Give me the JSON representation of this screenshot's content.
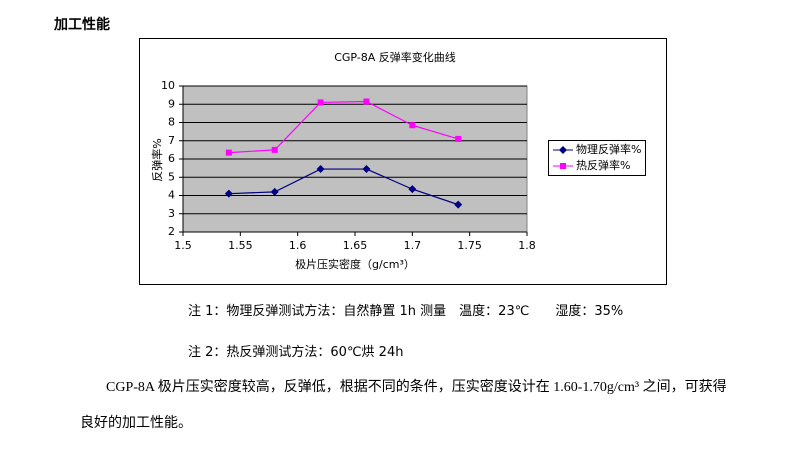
{
  "heading": "加工性能",
  "chart_data": {
    "type": "line",
    "title": "CGP-8A 反弹率变化曲线",
    "x_label": "极片压实密度（g/cm³）",
    "y_label": "反弹率%",
    "x": [
      1.54,
      1.58,
      1.62,
      1.66,
      1.7,
      1.74
    ],
    "series": [
      {
        "name": "物理反弹率%",
        "color": "#000080",
        "marker": "diamond",
        "values": [
          4.1,
          4.2,
          5.45,
          5.45,
          4.35,
          3.5
        ]
      },
      {
        "name": "热反弹率%",
        "color": "#ff00ff",
        "marker": "square",
        "values": [
          6.35,
          6.5,
          9.1,
          9.15,
          7.85,
          7.1
        ]
      }
    ],
    "xlim": [
      1.5,
      1.8
    ],
    "xticks": [
      1.5,
      1.55,
      1.6,
      1.65,
      1.7,
      1.75,
      1.8
    ],
    "ylim": [
      2,
      10
    ],
    "yticks": [
      2,
      3,
      4,
      5,
      6,
      7,
      8,
      9,
      10
    ],
    "grid": true,
    "plot_background": "#c0c0c0",
    "legend": "right"
  },
  "notes": [
    "注 1：物理反弹测试方法：自然静置 1h 测量　温度：23℃　　湿度：35%",
    "注 2：热反弹测试方法：60℃烘 24h"
  ],
  "paragraph": "CGP-8A 极片压实密度较高，反弹低，根据不同的条件，压实密度设计在 1.60-1.70g/cm³ 之间，可获得良好的加工性能。"
}
